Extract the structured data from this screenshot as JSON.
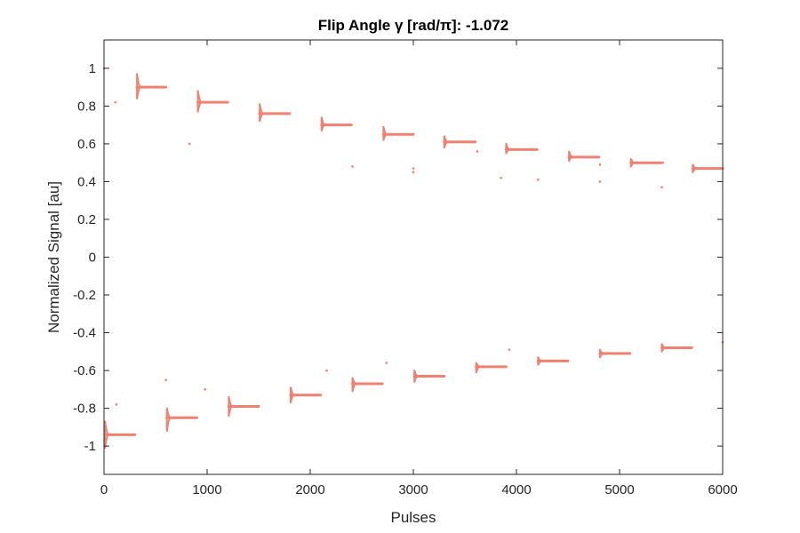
{
  "chart_data": {
    "type": "scatter",
    "title": "Flip Angle γ [rad/π]: -1.072",
    "xlabel": "Pulses",
    "ylabel": "Normalized Signal [au]",
    "xlim": [
      0,
      6000
    ],
    "ylim": [
      -1.15,
      1.15
    ],
    "xticks": [
      0,
      1000,
      2000,
      3000,
      4000,
      5000,
      6000
    ],
    "yticks": [
      -1,
      -0.8,
      -0.6,
      -0.4,
      -0.2,
      0,
      0.2,
      0.4,
      0.6,
      0.8,
      1
    ],
    "xtick_labels": [
      "0",
      "1000",
      "2000",
      "3000",
      "4000",
      "5000",
      "6000"
    ],
    "ytick_labels": [
      "-1",
      "-0.8",
      "-0.6",
      "-0.4",
      "-0.2",
      "0",
      "0.2",
      "0.4",
      "0.6",
      "0.8",
      "1"
    ],
    "grid": false,
    "box": true,
    "marker_color": "#f08070",
    "series": [
      {
        "segments": [
          {
            "x_start": 320,
            "x_end": 600,
            "y": 0.9,
            "y_start_min": 0.84,
            "y_start_max": 0.97
          },
          {
            "x_start": 910,
            "x_end": 1200,
            "y": 0.82,
            "y_start_min": 0.77,
            "y_start_max": 0.88
          },
          {
            "x_start": 1510,
            "x_end": 1800,
            "y": 0.76,
            "y_start_min": 0.72,
            "y_start_max": 0.81
          },
          {
            "x_start": 2110,
            "x_end": 2400,
            "y": 0.7,
            "y_start_min": 0.67,
            "y_start_max": 0.74
          },
          {
            "x_start": 2710,
            "x_end": 3000,
            "y": 0.65,
            "y_start_min": 0.62,
            "y_start_max": 0.69
          },
          {
            "x_start": 3300,
            "x_end": 3600,
            "y": 0.61,
            "y_start_min": 0.58,
            "y_start_max": 0.64
          },
          {
            "x_start": 3900,
            "x_end": 4200,
            "y": 0.57,
            "y_start_min": 0.55,
            "y_start_max": 0.6
          },
          {
            "x_start": 4510,
            "x_end": 4800,
            "y": 0.53,
            "y_start_min": 0.51,
            "y_start_max": 0.56
          },
          {
            "x_start": 5110,
            "x_end": 5400,
            "y": 0.5,
            "y_start_min": 0.48,
            "y_start_max": 0.52
          },
          {
            "x_start": 5710,
            "x_end": 6000,
            "y": 0.47,
            "y_start_min": 0.45,
            "y_start_max": 0.49
          },
          {
            "x_start": 10,
            "x_end": 300,
            "y": -0.94,
            "y_start_min": -1.01,
            "y_start_max": -0.87
          },
          {
            "x_start": 610,
            "x_end": 900,
            "y": -0.85,
            "y_start_min": -0.92,
            "y_start_max": -0.8
          },
          {
            "x_start": 1210,
            "x_end": 1500,
            "y": -0.79,
            "y_start_min": -0.84,
            "y_start_max": -0.74
          },
          {
            "x_start": 1810,
            "x_end": 2100,
            "y": -0.73,
            "y_start_min": -0.77,
            "y_start_max": -0.69
          },
          {
            "x_start": 2410,
            "x_end": 2700,
            "y": -0.67,
            "y_start_min": -0.71,
            "y_start_max": -0.64
          },
          {
            "x_start": 3010,
            "x_end": 3300,
            "y": -0.63,
            "y_start_min": -0.66,
            "y_start_max": -0.6
          },
          {
            "x_start": 3610,
            "x_end": 3900,
            "y": -0.58,
            "y_start_min": -0.61,
            "y_start_max": -0.56
          },
          {
            "x_start": 4210,
            "x_end": 4500,
            "y": -0.55,
            "y_start_min": -0.57,
            "y_start_max": -0.53
          },
          {
            "x_start": 4810,
            "x_end": 5100,
            "y": -0.51,
            "y_start_min": -0.53,
            "y_start_max": -0.49
          },
          {
            "x_start": 5410,
            "x_end": 5700,
            "y": -0.48,
            "y_start_min": -0.5,
            "y_start_max": -0.46
          }
        ],
        "isolated_points": [
          {
            "x": 0,
            "y": 1.0
          },
          {
            "x": 110,
            "y": 0.82
          },
          {
            "x": 830,
            "y": 0.6
          },
          {
            "x": 2410,
            "y": 0.48
          },
          {
            "x": 3000,
            "y": 0.47
          },
          {
            "x": 3000,
            "y": 0.45
          },
          {
            "x": 3620,
            "y": 0.56
          },
          {
            "x": 3850,
            "y": 0.42
          },
          {
            "x": 4210,
            "y": 0.41
          },
          {
            "x": 4810,
            "y": 0.4
          },
          {
            "x": 4810,
            "y": 0.49
          },
          {
            "x": 5410,
            "y": 0.37
          },
          {
            "x": 5420,
            "y": 0.5
          },
          {
            "x": 120,
            "y": -0.78
          },
          {
            "x": 600,
            "y": -0.65
          },
          {
            "x": 980,
            "y": -0.7
          },
          {
            "x": 2160,
            "y": -0.6
          },
          {
            "x": 2740,
            "y": -0.56
          },
          {
            "x": 3930,
            "y": -0.49
          },
          {
            "x": 6000,
            "y": -0.45
          }
        ]
      }
    ]
  }
}
